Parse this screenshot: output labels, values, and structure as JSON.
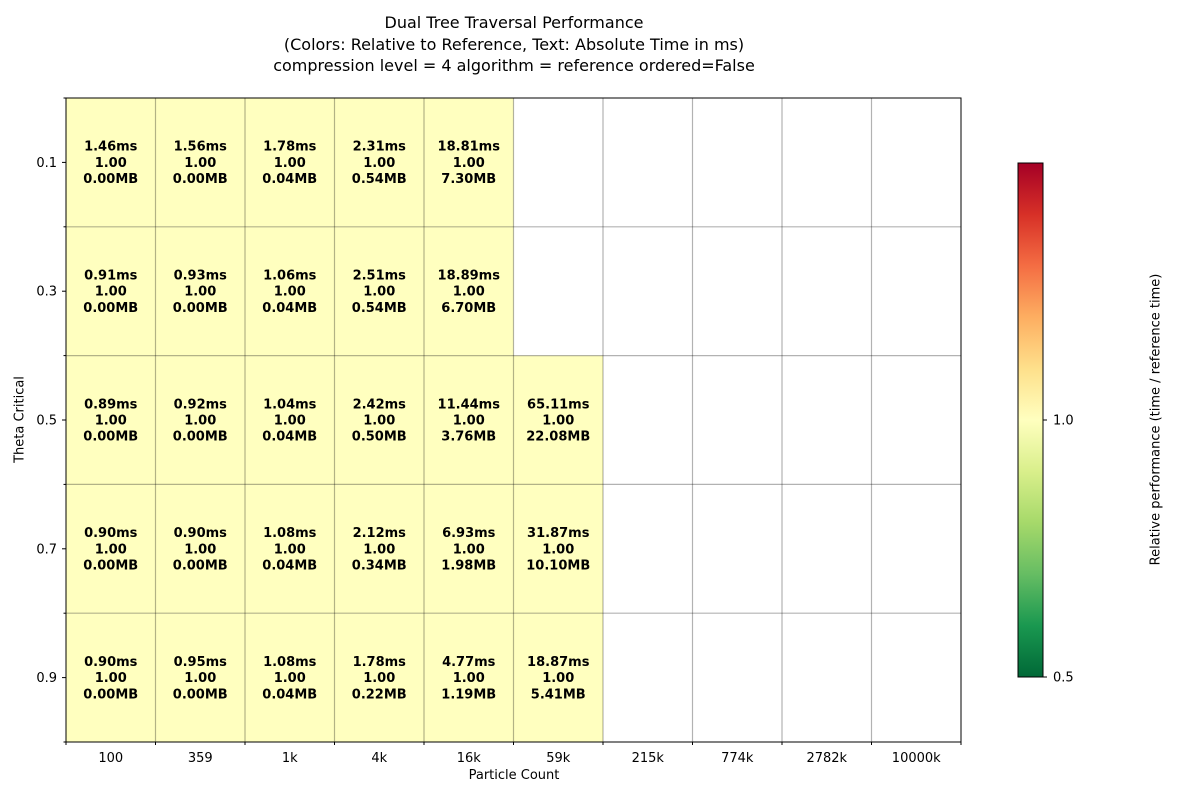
{
  "chart_data": {
    "type": "heatmap",
    "title_lines": [
      "Dual Tree Traversal Performance",
      "(Colors: Relative to Reference, Text: Absolute Time in ms)",
      "compression level = 4 algorithm = reference ordered=False"
    ],
    "xlabel": "Particle Count",
    "ylabel": "Theta Critical",
    "x_categories": [
      "100",
      "359",
      "1k",
      "4k",
      "16k",
      "59k",
      "215k",
      "774k",
      "2782k",
      "10000k"
    ],
    "y_categories": [
      "0.1",
      "0.3",
      "0.5",
      "0.7",
      "0.9"
    ],
    "cells": [
      [
        {
          "time": "1.46ms",
          "ratio": "1.00",
          "mem": "0.00MB"
        },
        {
          "time": "1.56ms",
          "ratio": "1.00",
          "mem": "0.00MB"
        },
        {
          "time": "1.78ms",
          "ratio": "1.00",
          "mem": "0.04MB"
        },
        {
          "time": "2.31ms",
          "ratio": "1.00",
          "mem": "0.54MB"
        },
        {
          "time": "18.81ms",
          "ratio": "1.00",
          "mem": "7.30MB"
        },
        null,
        null,
        null,
        null,
        null
      ],
      [
        {
          "time": "0.91ms",
          "ratio": "1.00",
          "mem": "0.00MB"
        },
        {
          "time": "0.93ms",
          "ratio": "1.00",
          "mem": "0.00MB"
        },
        {
          "time": "1.06ms",
          "ratio": "1.00",
          "mem": "0.04MB"
        },
        {
          "time": "2.51ms",
          "ratio": "1.00",
          "mem": "0.54MB"
        },
        {
          "time": "18.89ms",
          "ratio": "1.00",
          "mem": "6.70MB"
        },
        null,
        null,
        null,
        null,
        null
      ],
      [
        {
          "time": "0.89ms",
          "ratio": "1.00",
          "mem": "0.00MB"
        },
        {
          "time": "0.92ms",
          "ratio": "1.00",
          "mem": "0.00MB"
        },
        {
          "time": "1.04ms",
          "ratio": "1.00",
          "mem": "0.04MB"
        },
        {
          "time": "2.42ms",
          "ratio": "1.00",
          "mem": "0.50MB"
        },
        {
          "time": "11.44ms",
          "ratio": "1.00",
          "mem": "3.76MB"
        },
        {
          "time": "65.11ms",
          "ratio": "1.00",
          "mem": "22.08MB"
        },
        null,
        null,
        null,
        null
      ],
      [
        {
          "time": "0.90ms",
          "ratio": "1.00",
          "mem": "0.00MB"
        },
        {
          "time": "0.90ms",
          "ratio": "1.00",
          "mem": "0.00MB"
        },
        {
          "time": "1.08ms",
          "ratio": "1.00",
          "mem": "0.04MB"
        },
        {
          "time": "2.12ms",
          "ratio": "1.00",
          "mem": "0.34MB"
        },
        {
          "time": "6.93ms",
          "ratio": "1.00",
          "mem": "1.98MB"
        },
        {
          "time": "31.87ms",
          "ratio": "1.00",
          "mem": "10.10MB"
        },
        null,
        null,
        null,
        null
      ],
      [
        {
          "time": "0.90ms",
          "ratio": "1.00",
          "mem": "0.00MB"
        },
        {
          "time": "0.95ms",
          "ratio": "1.00",
          "mem": "0.00MB"
        },
        {
          "time": "1.08ms",
          "ratio": "1.00",
          "mem": "0.04MB"
        },
        {
          "time": "1.78ms",
          "ratio": "1.00",
          "mem": "0.22MB"
        },
        {
          "time": "4.77ms",
          "ratio": "1.00",
          "mem": "1.19MB"
        },
        {
          "time": "18.87ms",
          "ratio": "1.00",
          "mem": "5.41MB"
        },
        null,
        null,
        null,
        null
      ]
    ],
    "colorbar": {
      "label": "Relative performance (time / reference time)",
      "range": [
        0.5,
        1.5
      ],
      "ticks": [
        {
          "value": 0.5,
          "label": "0.5"
        },
        {
          "value": 1.0,
          "label": "1.0"
        }
      ],
      "colormap": "RdYlGn_r",
      "stops": [
        "#006837",
        "#1a9850",
        "#66bd63",
        "#a6d96a",
        "#d9ef8b",
        "#ffffbf",
        "#fee08b",
        "#fdae61",
        "#f46d43",
        "#d73027",
        "#a50026"
      ]
    },
    "colors": {
      "cell_fill": "#ffffbf",
      "grid": "#000000",
      "text": "#000000"
    },
    "grid": true
  }
}
